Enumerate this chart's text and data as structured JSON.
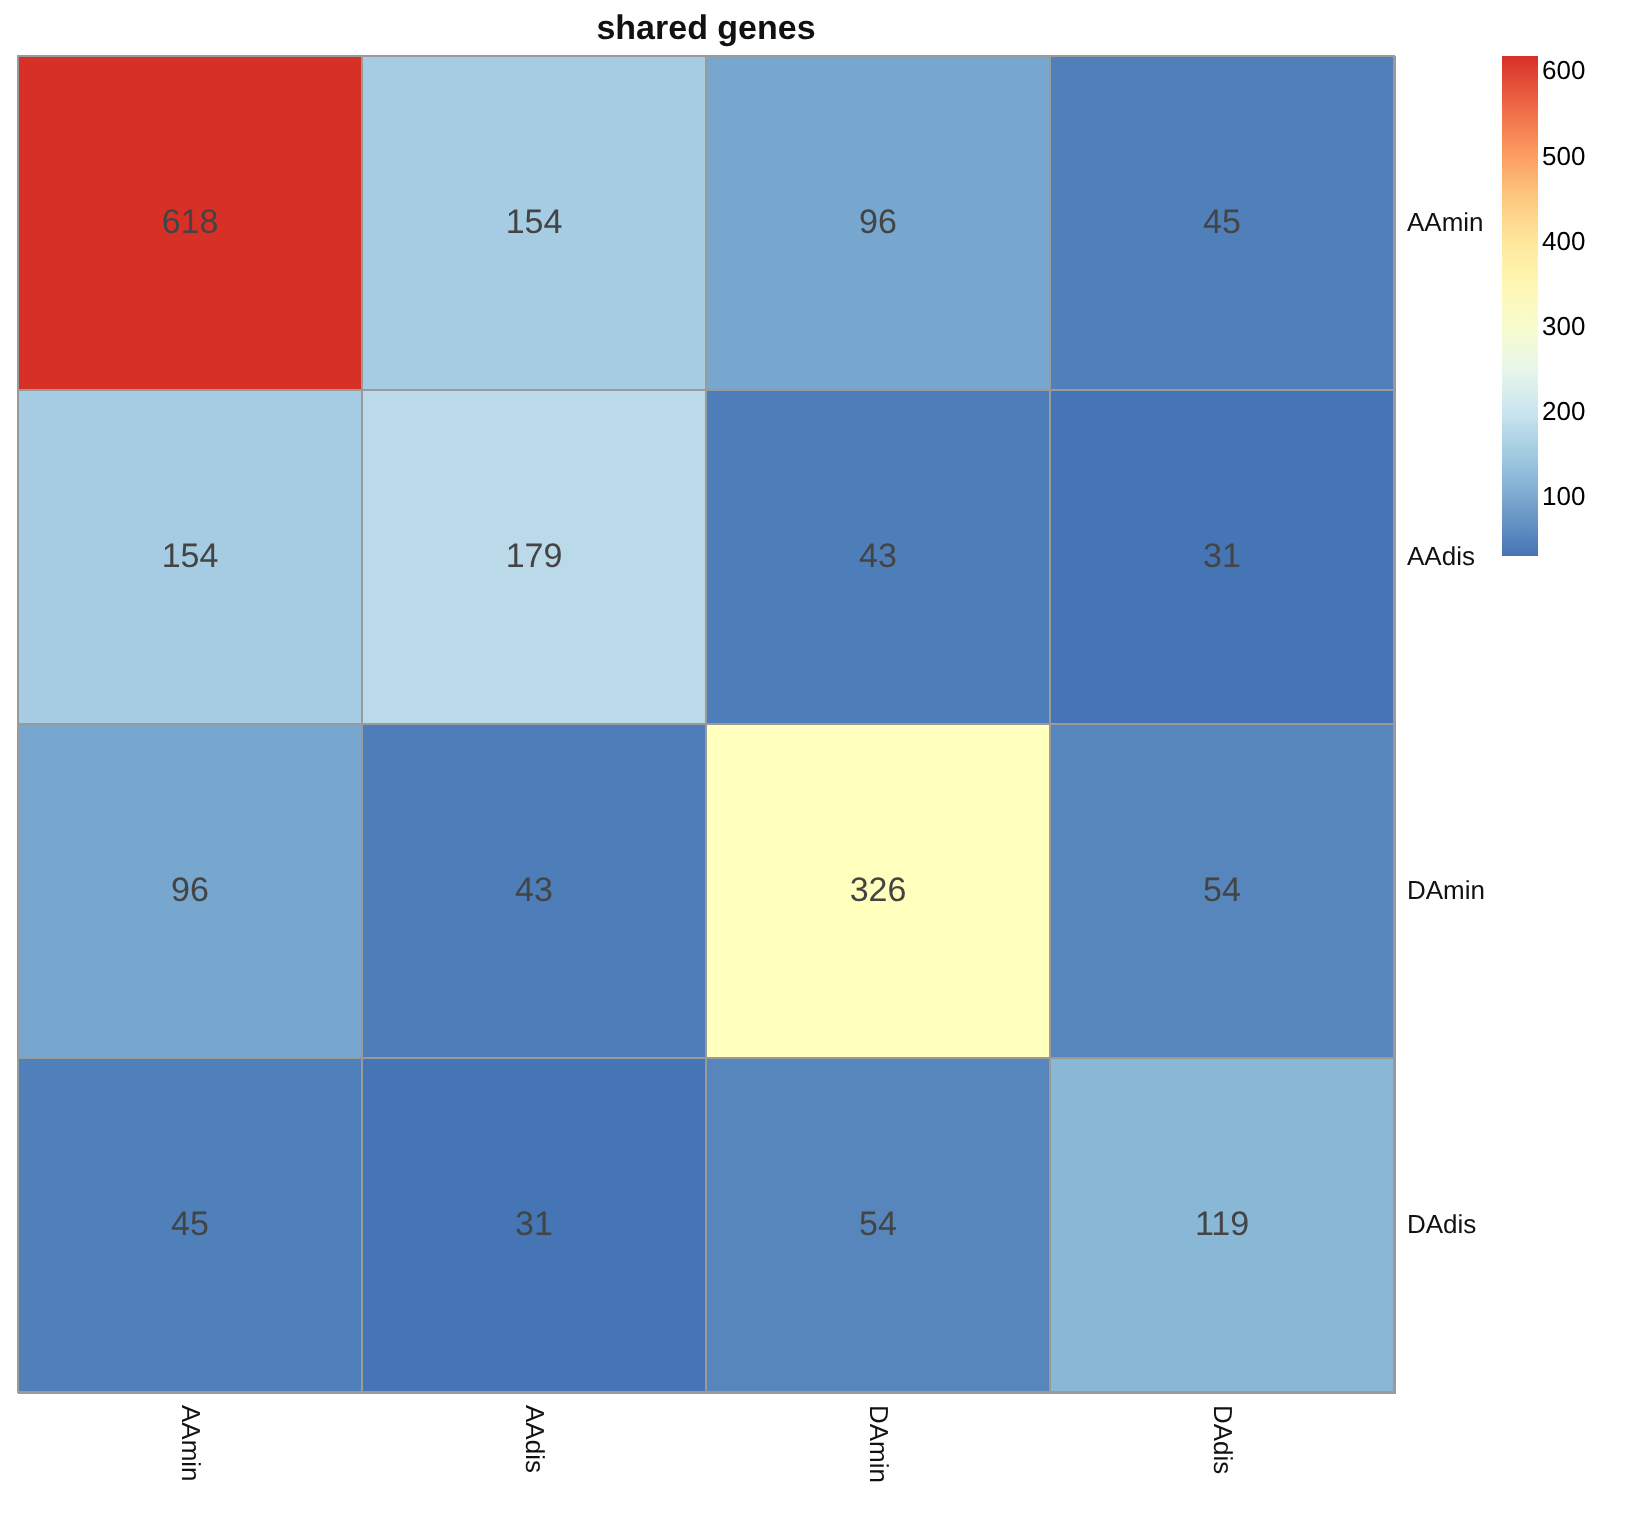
{
  "chart_data": {
    "type": "heatmap",
    "title": "shared genes",
    "categories": [
      "AAmin",
      "AAdis",
      "DAmin",
      "DAdis"
    ],
    "y_categories": [
      "AAmin",
      "AAdis",
      "DAmin",
      "DAdis"
    ],
    "cells": [
      [
        618,
        154,
        96,
        45
      ],
      [
        154,
        179,
        43,
        31
      ],
      [
        96,
        43,
        326,
        54
      ],
      [
        45,
        31,
        54,
        119
      ]
    ],
    "data_labels": true,
    "clim": [
      31,
      618
    ],
    "cticks": [
      100,
      200,
      300,
      400,
      500,
      600
    ]
  }
}
